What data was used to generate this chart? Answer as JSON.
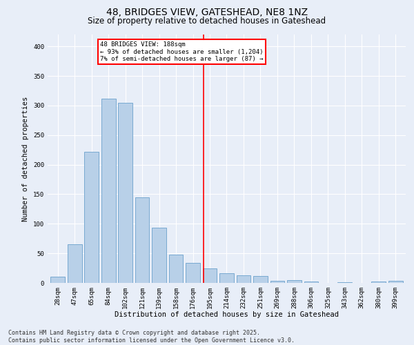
{
  "title1": "48, BRIDGES VIEW, GATESHEAD, NE8 1NZ",
  "title2": "Size of property relative to detached houses in Gateshead",
  "xlabel": "Distribution of detached houses by size in Gateshead",
  "ylabel": "Number of detached properties",
  "categories": [
    "28sqm",
    "47sqm",
    "65sqm",
    "84sqm",
    "102sqm",
    "121sqm",
    "139sqm",
    "158sqm",
    "176sqm",
    "195sqm",
    "214sqm",
    "232sqm",
    "251sqm",
    "269sqm",
    "288sqm",
    "306sqm",
    "325sqm",
    "343sqm",
    "362sqm",
    "380sqm",
    "399sqm"
  ],
  "values": [
    10,
    65,
    222,
    311,
    305,
    145,
    93,
    48,
    34,
    24,
    16,
    13,
    12,
    3,
    5,
    2,
    0,
    1,
    0,
    2,
    3
  ],
  "bar_color": "#b8d0e8",
  "bar_edge_color": "#6aa0cc",
  "vline_color": "red",
  "annotation_title": "48 BRIDGES VIEW: 188sqm",
  "annotation_line1": "← 93% of detached houses are smaller (1,204)",
  "annotation_line2": "7% of semi-detached houses are larger (87) →",
  "annotation_box_color": "white",
  "annotation_box_edgecolor": "red",
  "ylim": [
    0,
    420
  ],
  "yticks": [
    0,
    50,
    100,
    150,
    200,
    250,
    300,
    350,
    400
  ],
  "bg_color": "#e8eef8",
  "footer1": "Contains HM Land Registry data © Crown copyright and database right 2025.",
  "footer2": "Contains public sector information licensed under the Open Government Licence v3.0.",
  "title_fontsize": 10,
  "subtitle_fontsize": 8.5,
  "axis_label_fontsize": 7.5,
  "tick_fontsize": 6.5,
  "annotation_fontsize": 6.5,
  "footer_fontsize": 6.0
}
